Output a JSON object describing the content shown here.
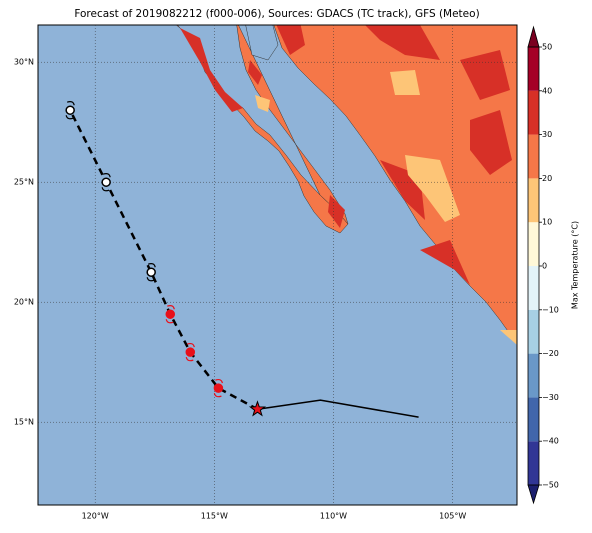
{
  "chart_data": {
    "type": "map",
    "title": "Forecast of 2019082212 (f000-006), Sources: GDACS (TC track), GFS (Meteo)",
    "xlim": [
      -122.4,
      -102.3
    ],
    "ylim": [
      11.55,
      31.55
    ],
    "xticks": [
      {
        "value": -120,
        "label": "120°W"
      },
      {
        "value": -115,
        "label": "115°W"
      },
      {
        "value": -110,
        "label": "110°W"
      },
      {
        "value": -105,
        "label": "105°W"
      }
    ],
    "yticks": [
      {
        "value": 15,
        "label": "15°N"
      },
      {
        "value": 20,
        "label": "20°N"
      },
      {
        "value": 25,
        "label": "25°N"
      },
      {
        "value": 30,
        "label": "30°N"
      }
    ],
    "grid": true,
    "ocean_color": "#8fb3d8",
    "observed_track": {
      "lon": [
        -113.19,
        -110.55,
        -106.43
      ],
      "lat": [
        15.54,
        15.92,
        15.21
      ],
      "color": "#000000"
    },
    "forecast_track": {
      "lon": [
        -113.19,
        -114.83,
        -116.01,
        -116.85,
        -117.65,
        -119.54,
        -121.05
      ],
      "lat": [
        15.54,
        16.42,
        17.92,
        19.5,
        21.25,
        25.0,
        28.0
      ],
      "point_colors": [
        "#e8101a",
        "#e8101a",
        "#e8101a",
        "#e8101a",
        "#ffffff",
        "#ffffff",
        "#ffffff"
      ]
    },
    "colorbar": {
      "label": "Max Temperature (°C)",
      "ticks": [
        {
          "value": -50,
          "label": "−50"
        },
        {
          "value": -40,
          "label": "−40"
        },
        {
          "value": -30,
          "label": "−30"
        },
        {
          "value": -20,
          "label": "−20"
        },
        {
          "value": -10,
          "label": "−10"
        },
        0,
        10,
        20,
        30,
        40,
        50
      ],
      "colors": [
        "#313695",
        "#4166ab",
        "#6a98c8",
        "#a7d0e4",
        "#e3f3f8",
        "#fff8d8",
        "#fdc577",
        "#f57748",
        "#d73027",
        "#a50026"
      ],
      "under_color": "#1b1f6e",
      "over_color": "#7a0020"
    }
  }
}
